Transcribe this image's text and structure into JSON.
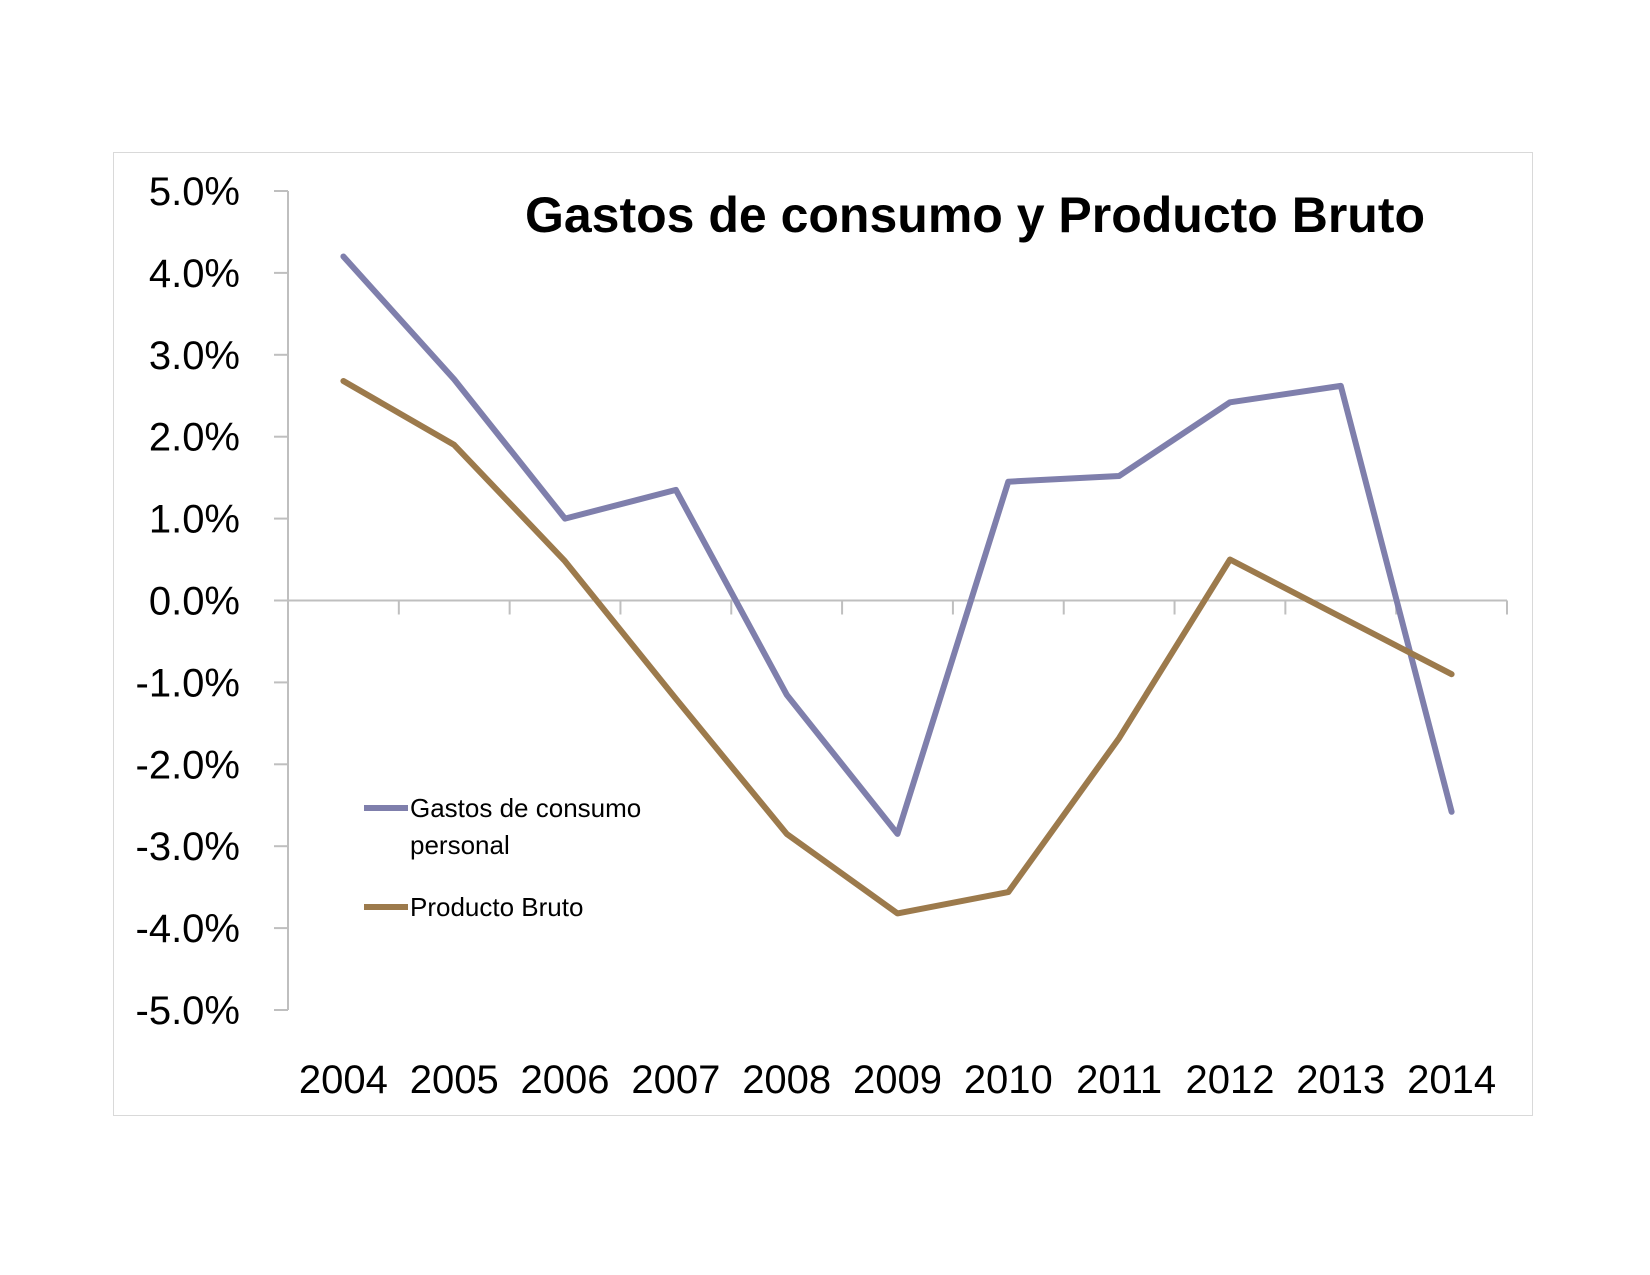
{
  "chart_data": {
    "type": "line",
    "title": "Gastos de consumo y Producto Bruto",
    "xlabel": "",
    "ylabel": "",
    "categories": [
      "2004",
      "2005",
      "2006",
      "2007",
      "2008",
      "2009",
      "2010",
      "2011",
      "2012",
      "2013",
      "2014"
    ],
    "ylim": [
      -5,
      5
    ],
    "yticks": [
      5,
      4,
      3,
      2,
      1,
      0,
      -1,
      -2,
      -3,
      -4,
      -5
    ],
    "ytick_labels": [
      "5.0%",
      "4.0%",
      "3.0%",
      "2.0%",
      "1.0%",
      "0.0%",
      "-1.0%",
      "-2.0%",
      "-3.0%",
      "-4.0%",
      "-5.0%"
    ],
    "grid": false,
    "legend": "bottom-left",
    "series": [
      {
        "name": "Gastos de consumo personal",
        "legend_lines": [
          "Gastos de consumo",
          "personal"
        ],
        "color": "#7f7fac",
        "values": [
          4.2,
          2.7,
          1.0,
          1.35,
          -1.15,
          -2.85,
          1.45,
          1.52,
          2.42,
          2.62,
          -2.58
        ]
      },
      {
        "name": "Producto Bruto",
        "legend_lines": [
          "Producto Bruto"
        ],
        "color": "#9c7a4c",
        "values": [
          2.68,
          1.9,
          0.48,
          -1.2,
          -2.85,
          -3.82,
          -3.56,
          -1.68,
          0.5,
          -0.2,
          -0.9
        ]
      }
    ]
  }
}
